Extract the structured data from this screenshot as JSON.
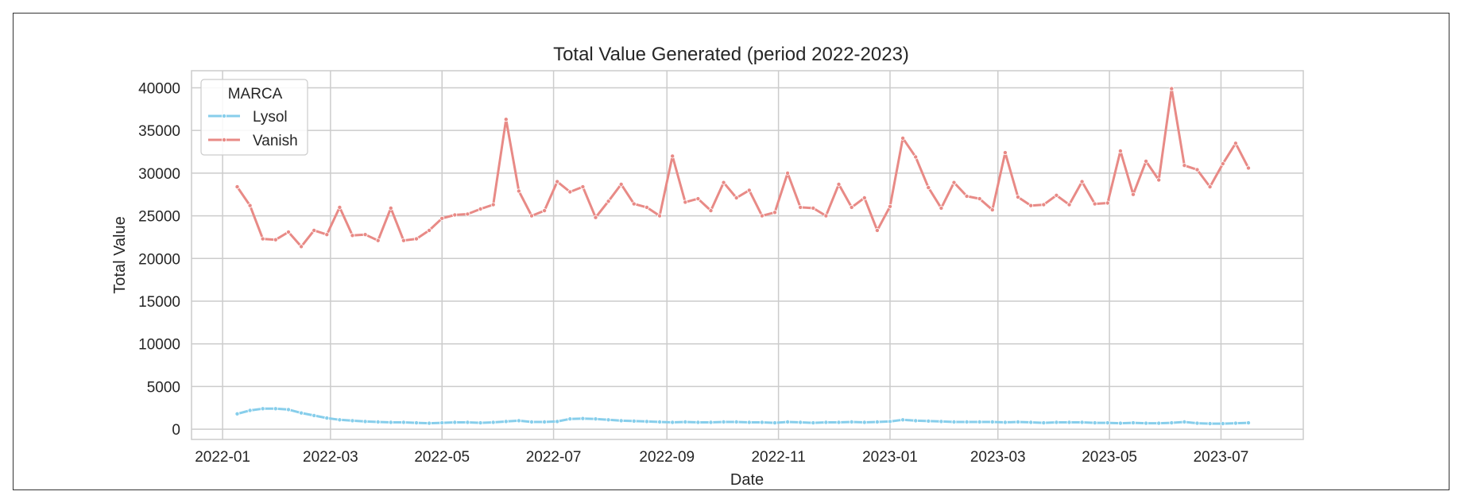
{
  "chart_data": {
    "type": "line",
    "title": "Total Value Generated (period 2022-2023)",
    "xlabel": "Date",
    "ylabel": "Total Value",
    "ylim": [
      -1200,
      42000
    ],
    "xlim": [
      "2021-12-15",
      "2023-08-15"
    ],
    "y_ticks": [
      0,
      5000,
      10000,
      15000,
      20000,
      25000,
      30000,
      35000,
      40000
    ],
    "x_ticks": [
      "2022-01",
      "2022-03",
      "2022-05",
      "2022-07",
      "2022-09",
      "2022-11",
      "2023-01",
      "2023-03",
      "2023-05",
      "2023-07"
    ],
    "grid": true,
    "legend": {
      "title": "MARCA",
      "position": "top-left"
    },
    "series": [
      {
        "name": "Lysol",
        "color": "#87ceeb",
        "x": [
          "2022-01-09",
          "2022-01-16",
          "2022-01-23",
          "2022-01-30",
          "2022-02-06",
          "2022-02-13",
          "2022-02-20",
          "2022-02-27",
          "2022-03-06",
          "2022-03-13",
          "2022-03-20",
          "2022-03-27",
          "2022-04-03",
          "2022-04-10",
          "2022-04-17",
          "2022-04-24",
          "2022-05-01",
          "2022-05-08",
          "2022-05-15",
          "2022-05-22",
          "2022-05-29",
          "2022-06-05",
          "2022-06-12",
          "2022-06-19",
          "2022-06-26",
          "2022-07-03",
          "2022-07-10",
          "2022-07-17",
          "2022-07-24",
          "2022-07-31",
          "2022-08-07",
          "2022-08-14",
          "2022-08-21",
          "2022-08-28",
          "2022-09-04",
          "2022-09-11",
          "2022-09-18",
          "2022-09-25",
          "2022-10-02",
          "2022-10-09",
          "2022-10-16",
          "2022-10-23",
          "2022-10-30",
          "2022-11-06",
          "2022-11-13",
          "2022-11-20",
          "2022-11-27",
          "2022-12-04",
          "2022-12-11",
          "2022-12-18",
          "2022-12-25",
          "2023-01-01",
          "2023-01-08",
          "2023-01-15",
          "2023-01-22",
          "2023-01-29",
          "2023-02-05",
          "2023-02-12",
          "2023-02-19",
          "2023-02-26",
          "2023-03-05",
          "2023-03-12",
          "2023-03-19",
          "2023-03-26",
          "2023-04-02",
          "2023-04-09",
          "2023-04-16",
          "2023-04-23",
          "2023-04-30",
          "2023-05-07",
          "2023-05-14",
          "2023-05-21",
          "2023-05-28",
          "2023-06-04",
          "2023-06-11",
          "2023-06-18",
          "2023-06-25",
          "2023-07-02",
          "2023-07-09",
          "2023-07-16"
        ],
        "values": [
          1800,
          2200,
          2400,
          2400,
          2300,
          1900,
          1600,
          1300,
          1100,
          1000,
          900,
          850,
          800,
          800,
          750,
          700,
          750,
          800,
          800,
          750,
          800,
          900,
          1000,
          850,
          850,
          900,
          1200,
          1250,
          1200,
          1100,
          1000,
          950,
          900,
          850,
          800,
          850,
          800,
          800,
          850,
          850,
          800,
          800,
          750,
          850,
          800,
          750,
          800,
          800,
          850,
          800,
          850,
          900,
          1100,
          1000,
          950,
          900,
          850,
          850,
          850,
          850,
          800,
          850,
          800,
          750,
          800,
          800,
          800,
          750,
          750,
          700,
          750,
          700,
          700,
          750,
          850,
          700,
          650,
          650,
          700,
          750
        ],
        "values_end": [
          800
        ]
      },
      {
        "name": "Vanish",
        "color": "#e88a86",
        "x": [
          "2022-01-09",
          "2022-01-16",
          "2022-01-23",
          "2022-01-30",
          "2022-02-06",
          "2022-02-13",
          "2022-02-20",
          "2022-02-27",
          "2022-03-06",
          "2022-03-13",
          "2022-03-20",
          "2022-03-27",
          "2022-04-03",
          "2022-04-10",
          "2022-04-17",
          "2022-04-24",
          "2022-05-01",
          "2022-05-08",
          "2022-05-15",
          "2022-05-22",
          "2022-05-29",
          "2022-06-05",
          "2022-06-12",
          "2022-06-19",
          "2022-06-26",
          "2022-07-03",
          "2022-07-10",
          "2022-07-17",
          "2022-07-24",
          "2022-07-31",
          "2022-08-07",
          "2022-08-14",
          "2022-08-21",
          "2022-08-28",
          "2022-09-04",
          "2022-09-11",
          "2022-09-18",
          "2022-09-25",
          "2022-10-02",
          "2022-10-09",
          "2022-10-16",
          "2022-10-23",
          "2022-10-30",
          "2022-11-06",
          "2022-11-13",
          "2022-11-20",
          "2022-11-27",
          "2022-12-04",
          "2022-12-11",
          "2022-12-18",
          "2022-12-25",
          "2023-01-01",
          "2023-01-08",
          "2023-01-15",
          "2023-01-22",
          "2023-01-29",
          "2023-02-05",
          "2023-02-12",
          "2023-02-19",
          "2023-02-26",
          "2023-03-05",
          "2023-03-12",
          "2023-03-19",
          "2023-03-26",
          "2023-04-02",
          "2023-04-09",
          "2023-04-16",
          "2023-04-23",
          "2023-04-30",
          "2023-05-07",
          "2023-05-14",
          "2023-05-21",
          "2023-05-28",
          "2023-06-04",
          "2023-06-11",
          "2023-06-18",
          "2023-06-25",
          "2023-07-02",
          "2023-07-09",
          "2023-07-16"
        ],
        "values": [
          28400,
          26200,
          22300,
          22200,
          23100,
          21400,
          23300,
          22800,
          26000,
          22700,
          22800,
          22100,
          25900,
          22100,
          22300,
          23300,
          24700,
          25100,
          25200,
          25800,
          26300,
          36300,
          27900,
          25000,
          25600,
          29000,
          27800,
          28400,
          24800,
          26700,
          28700,
          26400,
          26000,
          25000,
          32000,
          26600,
          27000,
          25600,
          28900,
          27100,
          28000,
          25000,
          25400,
          30000,
          26000,
          25900,
          25000,
          28700,
          26000,
          27100,
          23300,
          26100,
          34100,
          31900,
          28300,
          25900,
          28900,
          27300,
          27000,
          25700,
          32400,
          27200,
          26200,
          26300,
          27400,
          26300,
          29000,
          26400,
          26500,
          32600,
          27500,
          31400,
          29200,
          39900,
          30900,
          30400,
          28400,
          31100,
          33500,
          30600
        ]
      }
    ]
  }
}
